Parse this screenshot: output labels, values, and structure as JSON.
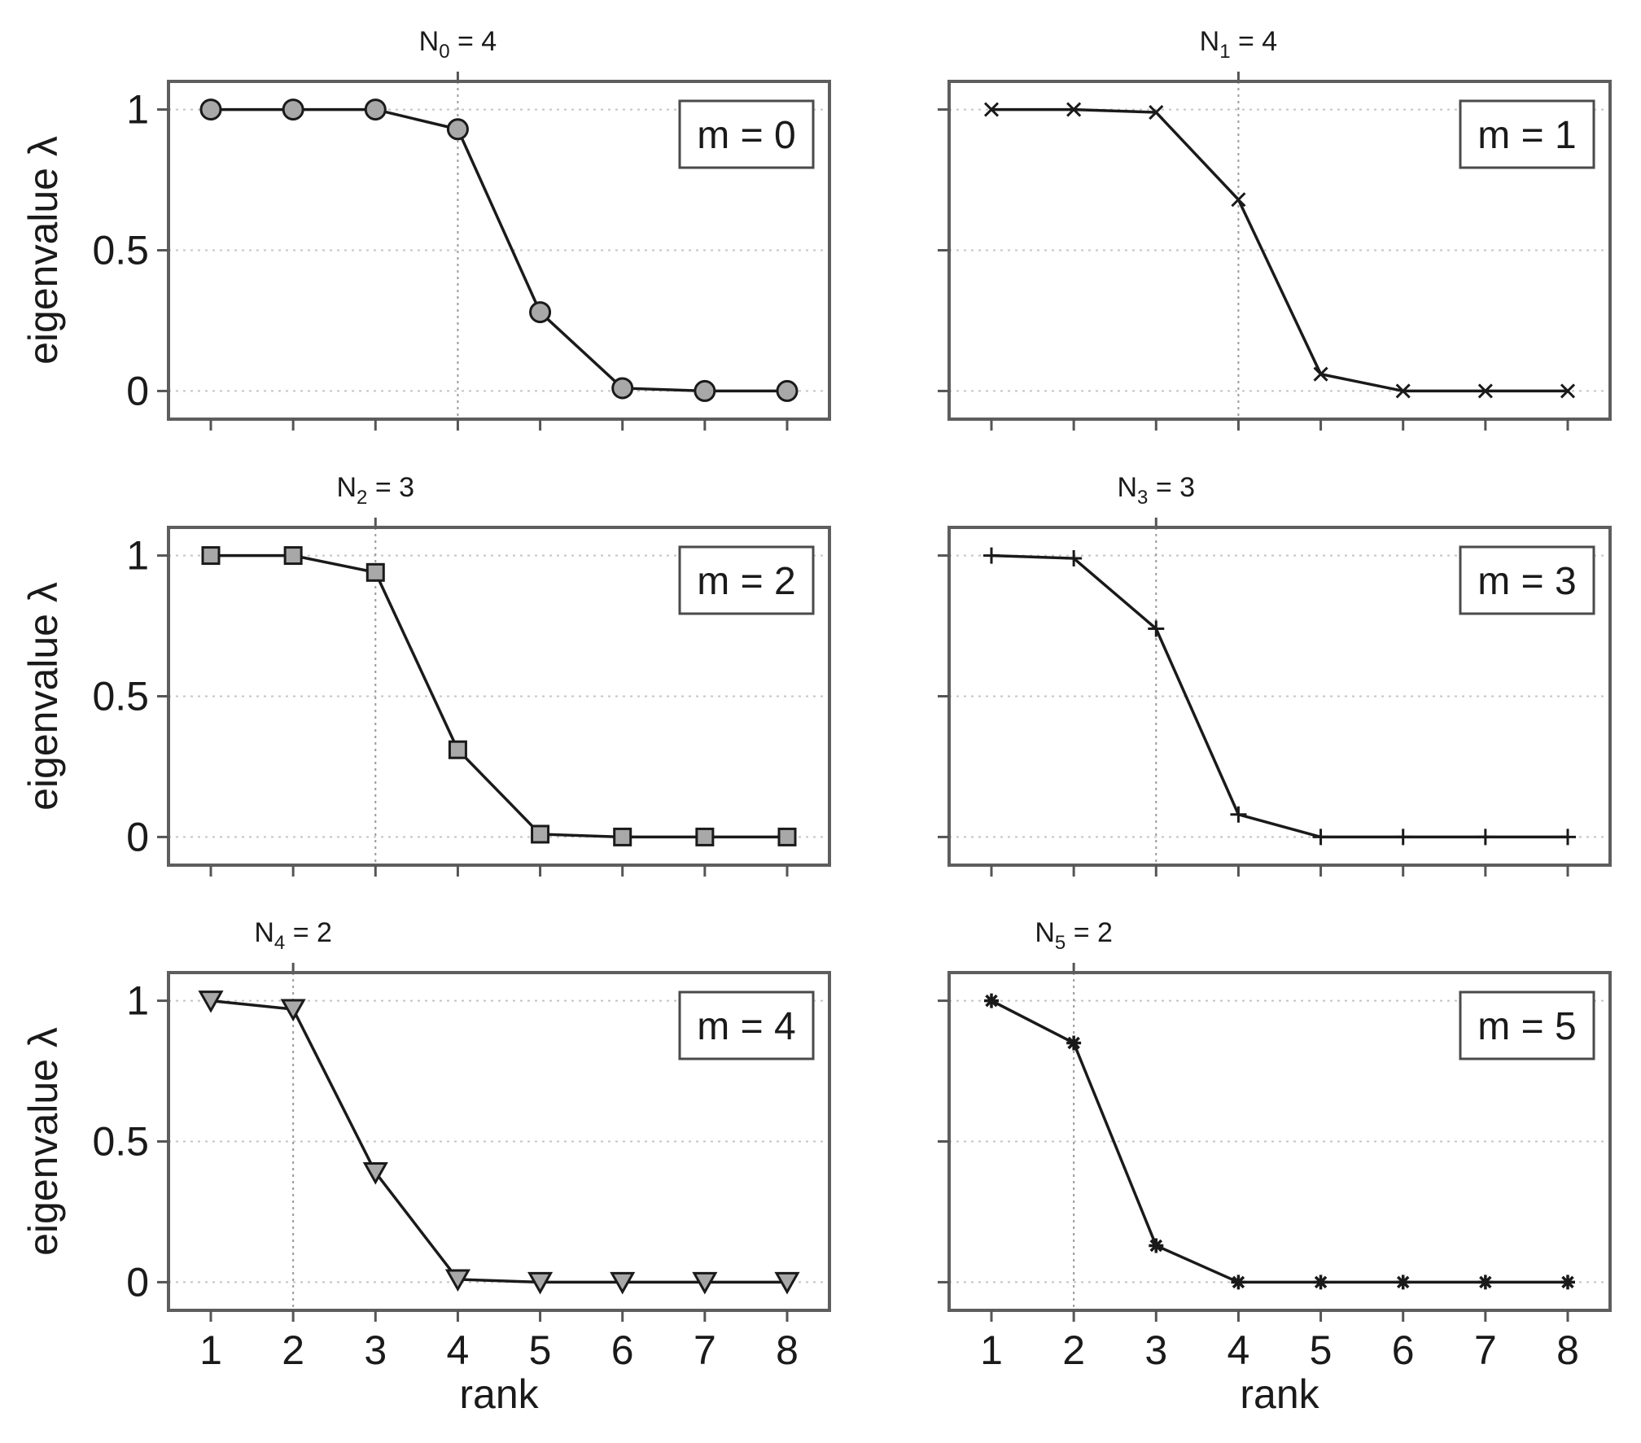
{
  "chart_data": [
    {
      "type": "line",
      "panel_title": "N_0 = 4",
      "title_parts": {
        "base": "N",
        "sub": "0",
        "rest": " = 4"
      },
      "legend": "m = 0",
      "marker": "circle",
      "marker_fill": "#a8a8a8",
      "N": 4,
      "x": [
        1,
        2,
        3,
        4,
        5,
        6,
        7,
        8
      ],
      "y": [
        1.0,
        1.0,
        1.0,
        0.93,
        0.28,
        0.01,
        0.0,
        0.0
      ],
      "xlabel": "",
      "ylabel": "eigenvalue λ",
      "xticks": [
        1,
        2,
        3,
        4,
        5,
        6,
        7,
        8
      ],
      "yticks": [
        0,
        0.5,
        1
      ],
      "ytick_labels": [
        "0",
        "0.5",
        "1"
      ],
      "xlim": [
        0.5,
        8.5
      ],
      "ylim": [
        -0.1,
        1.1
      ]
    },
    {
      "type": "line",
      "panel_title": "N_1 = 4",
      "title_parts": {
        "base": "N",
        "sub": "1",
        "rest": " = 4"
      },
      "legend": "m = 1",
      "marker": "x",
      "marker_fill": "none",
      "N": 4,
      "x": [
        1,
        2,
        3,
        4,
        5,
        6,
        7,
        8
      ],
      "y": [
        1.0,
        1.0,
        0.99,
        0.68,
        0.06,
        0.0,
        0.0,
        0.0
      ],
      "xlabel": "",
      "ylabel": "",
      "xticks": [
        1,
        2,
        3,
        4,
        5,
        6,
        7,
        8
      ],
      "yticks": [
        0,
        0.5,
        1
      ],
      "xlim": [
        0.5,
        8.5
      ],
      "ylim": [
        -0.1,
        1.1
      ]
    },
    {
      "type": "line",
      "panel_title": "N_2 = 3",
      "title_parts": {
        "base": "N",
        "sub": "2",
        "rest": " = 3"
      },
      "legend": "m = 2",
      "marker": "square",
      "marker_fill": "#a8a8a8",
      "N": 3,
      "x": [
        1,
        2,
        3,
        4,
        5,
        6,
        7,
        8
      ],
      "y": [
        1.0,
        1.0,
        0.94,
        0.31,
        0.01,
        0.0,
        0.0,
        0.0
      ],
      "xlabel": "",
      "ylabel": "eigenvalue λ",
      "xticks": [
        1,
        2,
        3,
        4,
        5,
        6,
        7,
        8
      ],
      "yticks": [
        0,
        0.5,
        1
      ],
      "ytick_labels": [
        "0",
        "0.5",
        "1"
      ],
      "xlim": [
        0.5,
        8.5
      ],
      "ylim": [
        -0.1,
        1.1
      ]
    },
    {
      "type": "line",
      "panel_title": "N_3 = 3",
      "title_parts": {
        "base": "N",
        "sub": "3",
        "rest": " = 3"
      },
      "legend": "m = 3",
      "marker": "plus",
      "marker_fill": "none",
      "N": 3,
      "x": [
        1,
        2,
        3,
        4,
        5,
        6,
        7,
        8
      ],
      "y": [
        1.0,
        0.99,
        0.74,
        0.08,
        0.0,
        0.0,
        0.0,
        0.0
      ],
      "xlabel": "",
      "ylabel": "",
      "xticks": [
        1,
        2,
        3,
        4,
        5,
        6,
        7,
        8
      ],
      "yticks": [
        0,
        0.5,
        1
      ],
      "xlim": [
        0.5,
        8.5
      ],
      "ylim": [
        -0.1,
        1.1
      ]
    },
    {
      "type": "line",
      "panel_title": "N_4 = 2",
      "title_parts": {
        "base": "N",
        "sub": "4",
        "rest": " = 2"
      },
      "legend": "m = 4",
      "marker": "triangle-down",
      "marker_fill": "#a8a8a8",
      "N": 2,
      "x": [
        1,
        2,
        3,
        4,
        5,
        6,
        7,
        8
      ],
      "y": [
        1.0,
        0.97,
        0.39,
        0.01,
        0.0,
        0.0,
        0.0,
        0.0
      ],
      "xlabel": "rank",
      "ylabel": "eigenvalue λ",
      "xticks": [
        1,
        2,
        3,
        4,
        5,
        6,
        7,
        8
      ],
      "xtick_labels": [
        "1",
        "2",
        "3",
        "4",
        "5",
        "6",
        "7",
        "8"
      ],
      "yticks": [
        0,
        0.5,
        1
      ],
      "ytick_labels": [
        "0",
        "0.5",
        "1"
      ],
      "xlim": [
        0.5,
        8.5
      ],
      "ylim": [
        -0.1,
        1.1
      ]
    },
    {
      "type": "line",
      "panel_title": "N_5 = 2",
      "title_parts": {
        "base": "N",
        "sub": "5",
        "rest": " = 2"
      },
      "legend": "m = 5",
      "marker": "asterisk",
      "marker_fill": "#1a1a1a",
      "N": 2,
      "x": [
        1,
        2,
        3,
        4,
        5,
        6,
        7,
        8
      ],
      "y": [
        1.0,
        0.85,
        0.13,
        0.0,
        0.0,
        0.0,
        0.0,
        0.0
      ],
      "xlabel": "rank",
      "ylabel": "",
      "xticks": [
        1,
        2,
        3,
        4,
        5,
        6,
        7,
        8
      ],
      "xtick_labels": [
        "1",
        "2",
        "3",
        "4",
        "5",
        "6",
        "7",
        "8"
      ],
      "yticks": [
        0,
        0.5,
        1
      ],
      "xlim": [
        0.5,
        8.5
      ],
      "ylim": [
        -0.1,
        1.1
      ]
    }
  ]
}
